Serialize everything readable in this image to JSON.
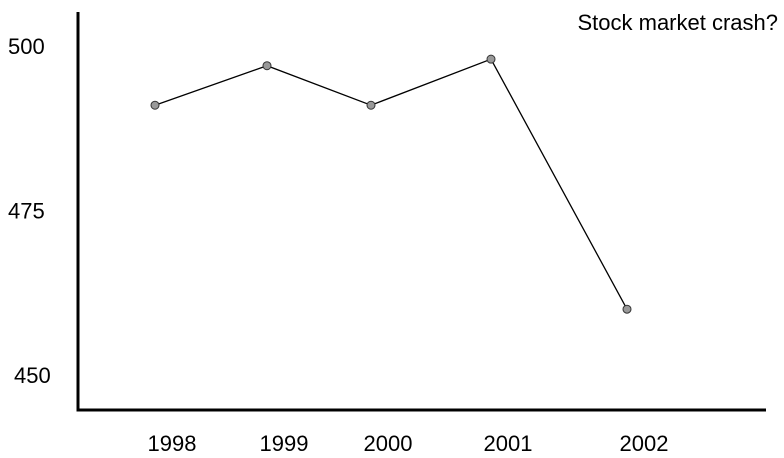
{
  "chart_data": {
    "type": "line",
    "title": "",
    "xlabel": "",
    "ylabel": "",
    "annotation": "Stock market crash?",
    "categories": [
      "1998",
      "1999",
      "2000",
      "2001",
      "2002"
    ],
    "series": [
      {
        "values": [
          491,
          497,
          491,
          498,
          460
        ]
      }
    ],
    "yticks": [
      450,
      475,
      500
    ],
    "ylim": [
      446,
      506
    ],
    "grid": false,
    "legend": "none",
    "colors": {
      "line": "#000000",
      "marker_fill": "#999999",
      "marker_stroke": "#333333",
      "axis": "#000000"
    }
  }
}
